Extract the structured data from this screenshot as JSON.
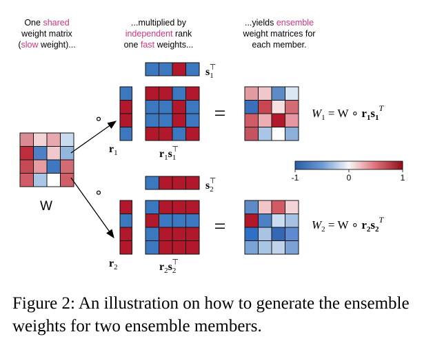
{
  "header": {
    "col1": [
      [
        {
          "t": "One ",
          "hl": false
        },
        {
          "t": "shared",
          "hl": true
        }
      ],
      [
        {
          "t": "weight matrix",
          "hl": false
        }
      ],
      [
        {
          "t": "(",
          "hl": false
        },
        {
          "t": "slow",
          "hl": true
        },
        {
          "t": " weight)...",
          "hl": false
        }
      ]
    ],
    "col2": [
      [
        {
          "t": "...multiplied by",
          "hl": false
        }
      ],
      [
        {
          "t": "independent",
          "hl": true
        },
        {
          "t": " rank",
          "hl": false
        }
      ],
      [
        {
          "t": "one ",
          "hl": false
        },
        {
          "t": "fast",
          "hl": true
        },
        {
          "t": " weights...",
          "hl": false
        }
      ]
    ],
    "col3": [
      [
        {
          "t": "...yields ",
          "hl": false
        },
        {
          "t": "ensemble",
          "hl": true
        }
      ],
      [
        {
          "t": "weight matrices for",
          "hl": false
        }
      ],
      [
        {
          "t": "each member.",
          "hl": false
        }
      ]
    ]
  },
  "colors": {
    "pink": "#d6337f",
    "red": "#b2182b",
    "blue": "#3b78c0",
    "white": "#ffffff"
  },
  "labels": {
    "w": "W",
    "hadamard": "∘",
    "equals": "=",
    "r1": "r",
    "r1_sub": "1",
    "r2": "r",
    "r2_sub": "2",
    "s1": "s",
    "s1_sub": "1",
    "s1_sup": "⊤",
    "s2": "s",
    "s2_sub": "2",
    "s2_sup": "⊤",
    "r1s1": "r",
    "r1s1_a": "1",
    "r1s1_b": "s",
    "r1s1_c": "1",
    "r1s1_d": "⊤",
    "r2s2": "r",
    "r2s2_a": "2",
    "r2s2_b": "s",
    "r2s2_c": "2",
    "r2s2_d": "⊤",
    "eq1": {
      "lhs": "W",
      "lhs_sub": "1",
      "mid": " = W ∘ ",
      "r": "r",
      "r_sub": "1",
      "s": "s",
      "s_sub": "1",
      "sup": "T"
    },
    "eq2": {
      "lhs": "W",
      "lhs_sub": "2",
      "mid": " = W ∘ ",
      "r": "r",
      "r_sub": "2",
      "s": "s",
      "s_sub": "2",
      "sup": "T"
    }
  },
  "colorbar": {
    "ticks": [
      "-1",
      "0",
      "1"
    ]
  },
  "matrices": {
    "W": [
      [
        "#d88b92",
        "#f3d3d6",
        "#e8a8ae",
        "#c9dbef"
      ],
      [
        "#bd2d3c",
        "#4f7fc4",
        "#f0c9cc",
        "#93b6dc"
      ],
      [
        "#c54a56",
        "#e79ba2",
        "#3f77c0",
        "#d26b74"
      ],
      [
        "#cf5c66",
        "#aac6e6",
        "#ffffff",
        "#d05e68"
      ]
    ],
    "r1": [
      "b",
      "r",
      "r",
      "b"
    ],
    "s1": [
      "b",
      "b",
      "r",
      "b"
    ],
    "r2": [
      "r",
      "b",
      "r",
      "r"
    ],
    "s2": [
      "b",
      "r",
      "r",
      "r"
    ],
    "W1": [
      [
        "#e49aa2",
        "#f2c7cb",
        "#5d8bc8",
        "#dbe7f4"
      ],
      [
        "#3a6fbc",
        "#c84652",
        "#f7dfe1",
        "#d26b74"
      ],
      [
        "#cf5c66",
        "#ecaeb3",
        "#b2182b",
        "#e596a0"
      ],
      [
        "#c35460",
        "#a9c6e6",
        "#ffffff",
        "#8bb0da"
      ]
    ],
    "W2": [
      [
        "#5d8bc8",
        "#f1c4c8",
        "#d25a66",
        "#f3d3d6"
      ],
      [
        "#b2182b",
        "#4b80c4",
        "#cadcf0",
        "#a5c2e4"
      ],
      [
        "#2f70c4",
        "#a9c3e4",
        "#3468b5",
        "#5d8ad0"
      ],
      [
        "#7ba4d6",
        "#a9c5e4",
        "#bfd3ea",
        "#7aa2d4"
      ]
    ]
  },
  "caption": "Figure 2: An illustration on how to generate the ensemble weights for two ensemble members."
}
